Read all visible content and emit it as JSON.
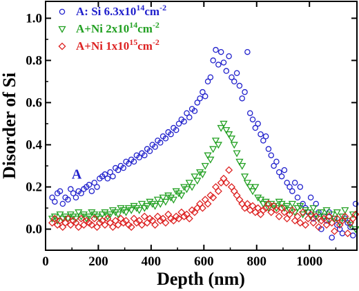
{
  "chart_data": {
    "type": "scatter",
    "xlabel": "Depth (nm)",
    "ylabel": "Disorder of Si",
    "xlim": [
      0,
      1180
    ],
    "ylim": [
      -0.1,
      1.08
    ],
    "xticks": [
      0,
      200,
      400,
      600,
      800,
      1000
    ],
    "yticks": [
      0.0,
      0.2,
      0.4,
      0.6,
      0.8,
      1.0
    ],
    "grid": false,
    "legend_position": "top-left",
    "annotations": [
      {
        "text": "A",
        "x": 120,
        "y": 0.24,
        "color": "#2222cc"
      }
    ],
    "series": [
      {
        "name_parts": [
          "A: Si 6.3x10",
          "14",
          "cm",
          "-2"
        ],
        "marker": "circle",
        "color": "#2020cc",
        "x": [
          25,
          35,
          45,
          55,
          65,
          75,
          85,
          95,
          105,
          115,
          125,
          135,
          145,
          155,
          165,
          175,
          185,
          195,
          205,
          215,
          225,
          235,
          245,
          255,
          265,
          275,
          285,
          295,
          305,
          315,
          325,
          335,
          345,
          355,
          365,
          375,
          385,
          395,
          405,
          415,
          425,
          435,
          445,
          455,
          465,
          475,
          485,
          495,
          505,
          515,
          525,
          535,
          545,
          555,
          565,
          575,
          585,
          595,
          605,
          615,
          625,
          635,
          645,
          655,
          665,
          675,
          685,
          695,
          705,
          715,
          725,
          735,
          745,
          755,
          765,
          775,
          785,
          795,
          805,
          815,
          825,
          835,
          845,
          855,
          865,
          875,
          885,
          895,
          905,
          915,
          925,
          935,
          945,
          955,
          965,
          975,
          985,
          995,
          1005,
          1015,
          1025,
          1035,
          1045,
          1055,
          1065,
          1075,
          1085,
          1095,
          1105,
          1115,
          1125,
          1135,
          1145,
          1155,
          1165,
          1175
        ],
        "y": [
          0.15,
          0.13,
          0.17,
          0.18,
          0.12,
          0.15,
          0.14,
          0.19,
          0.17,
          0.15,
          0.18,
          0.17,
          0.19,
          0.2,
          0.21,
          0.18,
          0.22,
          0.2,
          0.24,
          0.25,
          0.26,
          0.24,
          0.27,
          0.25,
          0.29,
          0.28,
          0.3,
          0.29,
          0.32,
          0.31,
          0.33,
          0.32,
          0.35,
          0.34,
          0.36,
          0.35,
          0.38,
          0.37,
          0.4,
          0.39,
          0.42,
          0.41,
          0.44,
          0.43,
          0.46,
          0.45,
          0.48,
          0.47,
          0.5,
          0.52,
          0.51,
          0.55,
          0.53,
          0.57,
          0.56,
          0.6,
          0.62,
          0.65,
          0.63,
          0.7,
          0.72,
          0.8,
          0.85,
          0.78,
          0.84,
          0.79,
          0.75,
          0.82,
          0.72,
          0.7,
          0.74,
          0.68,
          0.62,
          0.65,
          0.84,
          0.55,
          0.52,
          0.48,
          0.5,
          0.45,
          0.42,
          0.44,
          0.38,
          0.35,
          0.3,
          0.32,
          0.27,
          0.25,
          0.28,
          0.22,
          0.2,
          0.18,
          0.22,
          0.15,
          0.2,
          0.12,
          0.1,
          0.08,
          0.15,
          0.05,
          0.12,
          0.08,
          0.0,
          0.06,
          0.04,
          0.08,
          -0.04,
          0.05,
          0.02,
          0.0,
          -0.02,
          0.05,
          0.03,
          0.01,
          -0.03,
          0.12
        ]
      },
      {
        "name_parts": [
          "A+Ni 2x10",
          "14",
          "cm",
          "-2"
        ],
        "marker": "triangle-down",
        "color": "#22a022",
        "x": [
          25,
          35,
          45,
          55,
          65,
          75,
          85,
          95,
          105,
          115,
          125,
          135,
          145,
          155,
          165,
          175,
          185,
          195,
          205,
          215,
          225,
          235,
          245,
          255,
          265,
          275,
          285,
          295,
          305,
          315,
          325,
          335,
          345,
          355,
          365,
          375,
          385,
          395,
          405,
          415,
          425,
          435,
          445,
          455,
          465,
          475,
          485,
          495,
          505,
          515,
          525,
          535,
          545,
          555,
          565,
          575,
          585,
          595,
          605,
          615,
          625,
          635,
          645,
          655,
          665,
          675,
          685,
          695,
          705,
          715,
          725,
          735,
          745,
          755,
          765,
          775,
          785,
          795,
          805,
          815,
          825,
          835,
          845,
          855,
          865,
          875,
          885,
          895,
          905,
          915,
          925,
          935,
          945,
          955,
          965,
          975,
          985,
          995,
          1005,
          1015,
          1025,
          1035,
          1045,
          1055,
          1065,
          1075,
          1085,
          1095,
          1105,
          1115,
          1125,
          1135,
          1145,
          1155,
          1165,
          1175
        ],
        "y": [
          0.05,
          0.06,
          0.04,
          0.07,
          0.05,
          0.06,
          0.05,
          0.07,
          0.06,
          0.05,
          0.08,
          0.06,
          0.07,
          0.05,
          0.06,
          0.08,
          0.07,
          0.06,
          0.05,
          0.07,
          0.08,
          0.06,
          0.07,
          0.09,
          0.08,
          0.07,
          0.1,
          0.09,
          0.08,
          0.1,
          0.09,
          0.11,
          0.1,
          0.09,
          0.12,
          0.1,
          0.11,
          0.13,
          0.12,
          0.11,
          0.14,
          0.12,
          0.15,
          0.13,
          0.16,
          0.15,
          0.14,
          0.18,
          0.17,
          0.16,
          0.2,
          0.19,
          0.22,
          0.2,
          0.25,
          0.23,
          0.27,
          0.26,
          0.3,
          0.35,
          0.33,
          0.38,
          0.42,
          0.4,
          0.48,
          0.5,
          0.47,
          0.45,
          0.43,
          0.4,
          0.36,
          0.32,
          0.3,
          0.25,
          0.22,
          0.2,
          0.18,
          0.2,
          0.15,
          0.14,
          0.12,
          0.13,
          0.1,
          0.12,
          0.11,
          0.1,
          0.13,
          0.12,
          0.1,
          0.11,
          0.09,
          0.12,
          0.08,
          0.1,
          0.11,
          0.07,
          0.09,
          0.08,
          0.06,
          0.1,
          0.07,
          0.05,
          0.08,
          0.06,
          0.09,
          0.04,
          0.07,
          0.05,
          0.08,
          0.03,
          0.06,
          0.09,
          0.04,
          0.02,
          0.07,
          0.0
        ]
      },
      {
        "name_parts": [
          "A+Ni 1x10",
          "15",
          "cm",
          "-2"
        ],
        "marker": "diamond",
        "color": "#dd2222",
        "x": [
          25,
          35,
          45,
          55,
          65,
          75,
          85,
          95,
          105,
          115,
          125,
          135,
          145,
          155,
          165,
          175,
          185,
          195,
          205,
          215,
          225,
          235,
          245,
          255,
          265,
          275,
          285,
          295,
          305,
          315,
          325,
          335,
          345,
          355,
          365,
          375,
          385,
          395,
          405,
          415,
          425,
          435,
          445,
          455,
          465,
          475,
          485,
          495,
          505,
          515,
          525,
          535,
          545,
          555,
          565,
          575,
          585,
          595,
          605,
          615,
          625,
          635,
          645,
          655,
          665,
          675,
          685,
          695,
          705,
          715,
          725,
          735,
          745,
          755,
          765,
          775,
          785,
          795,
          805,
          815,
          825,
          835,
          845,
          855,
          865,
          875,
          885,
          895,
          905,
          915,
          925,
          935,
          945,
          955,
          965,
          975,
          985,
          995,
          1005,
          1015,
          1025,
          1035,
          1045,
          1055,
          1065,
          1075,
          1085,
          1095,
          1105,
          1115,
          1125,
          1135,
          1145,
          1155,
          1165,
          1175
        ],
        "y": [
          0.03,
          0.05,
          0.02,
          0.04,
          0.01,
          0.03,
          0.05,
          0.02,
          0.04,
          0.03,
          0.01,
          0.05,
          0.02,
          0.04,
          0.03,
          0.02,
          0.05,
          0.01,
          0.03,
          0.04,
          0.02,
          0.05,
          0.03,
          0.01,
          0.04,
          0.02,
          0.05,
          0.03,
          0.04,
          0.02,
          0.01,
          0.05,
          0.03,
          0.04,
          0.02,
          0.06,
          0.03,
          0.05,
          0.04,
          0.02,
          0.06,
          0.04,
          0.05,
          0.03,
          0.07,
          0.05,
          0.04,
          0.06,
          0.05,
          0.08,
          0.06,
          0.07,
          0.05,
          0.09,
          0.08,
          0.1,
          0.12,
          0.1,
          0.14,
          0.12,
          0.16,
          0.15,
          0.2,
          0.18,
          0.22,
          0.24,
          0.22,
          0.28,
          0.2,
          0.18,
          0.16,
          0.14,
          0.12,
          0.1,
          0.12,
          0.09,
          0.11,
          0.08,
          0.1,
          0.07,
          0.09,
          0.1,
          0.12,
          0.08,
          0.11,
          0.09,
          0.06,
          0.1,
          0.08,
          0.05,
          0.07,
          0.09,
          0.04,
          0.06,
          0.03,
          0.08,
          0.02,
          0.05,
          0.07,
          0.03,
          0.06,
          0.01,
          0.04,
          0.05,
          0.02,
          0.06,
          0.03,
          -0.01,
          0.05,
          0.02,
          0.04,
          0.06,
          -0.02,
          0.03,
          0.05,
          0.07
        ]
      }
    ]
  }
}
